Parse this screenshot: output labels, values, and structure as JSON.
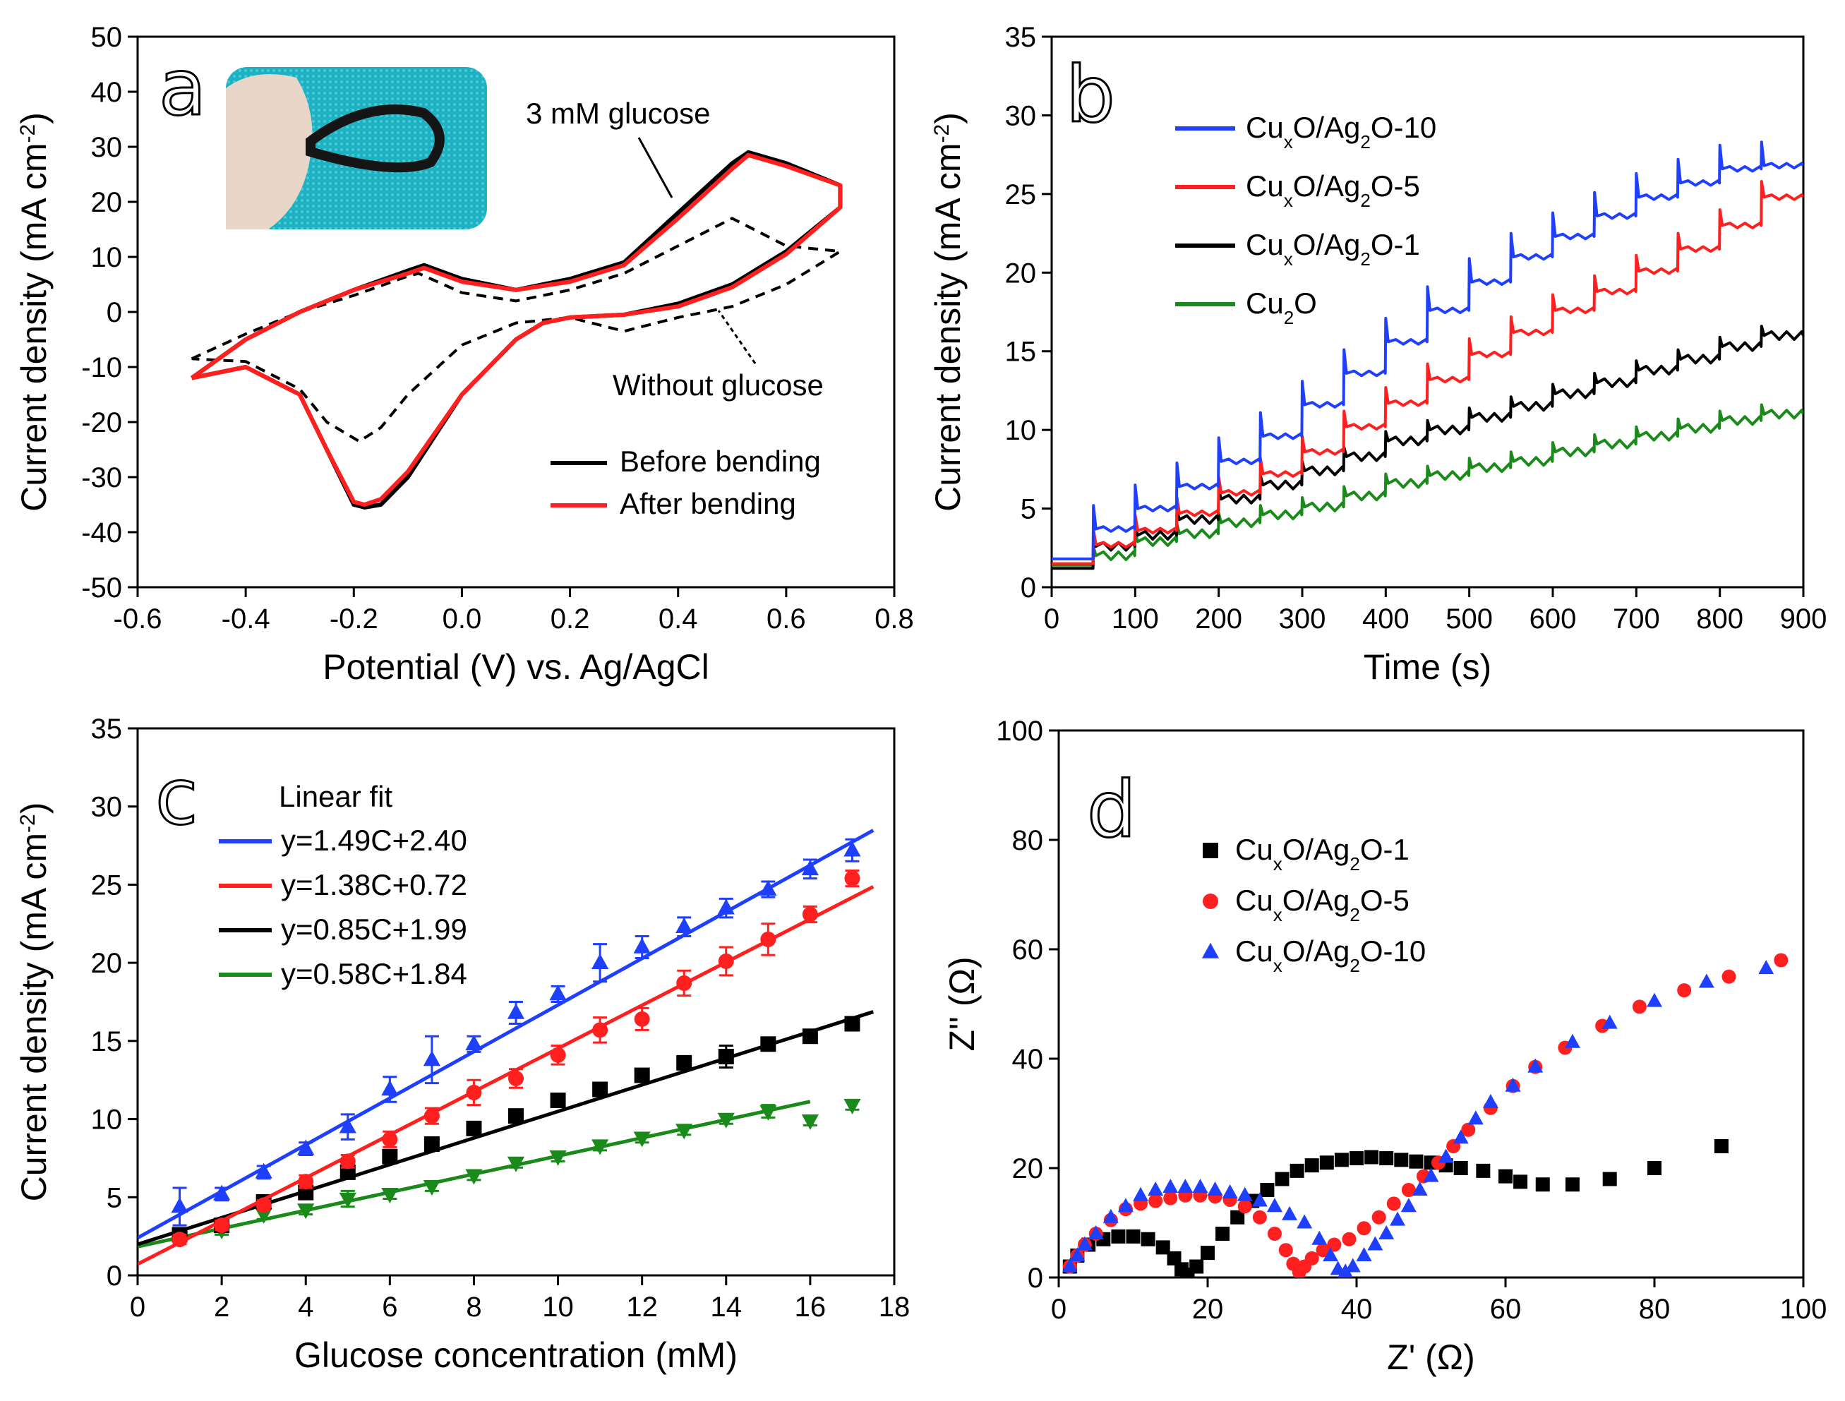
{
  "colors": {
    "blue": "#1f3fff",
    "red": "#ff1f1f",
    "black": "#000000",
    "green": "#1a8a1a"
  },
  "chart_data": [
    {
      "panel": "a",
      "type": "line",
      "letter": "a",
      "xlabel": "Potential (V) vs. Ag/AgCl",
      "ylabel": "Current density (mA cm",
      "ylabel_sup": "-2",
      "ylabel_end": ")",
      "xlim": [
        -0.6,
        0.8
      ],
      "ylim": [
        -50,
        50
      ],
      "xticks": [
        "-0.6",
        "-0.4",
        "-0.2",
        "0.0",
        "0.2",
        "0.4",
        "0.6",
        "0.8"
      ],
      "yticks": [
        "-50",
        "-40",
        "-30",
        "-20",
        "-10",
        "0",
        "10",
        "20",
        "30",
        "40",
        "50"
      ],
      "annotations": [
        "3 mM glucose",
        "Without glucose"
      ],
      "inset": "photo of bent flexible electrode",
      "series": [
        {
          "name": "Before bending",
          "color": "black",
          "style": "solid",
          "x": [
            -0.5,
            -0.4,
            -0.3,
            -0.2,
            -0.1,
            -0.07,
            0.0,
            0.1,
            0.2,
            0.3,
            0.4,
            0.5,
            0.53,
            0.6,
            0.7,
            0.7,
            0.6,
            0.5,
            0.4,
            0.3,
            0.2,
            0.15,
            0.1,
            0.0,
            -0.1,
            -0.15,
            -0.18,
            -0.2,
            -0.25,
            -0.3,
            -0.4,
            -0.5
          ],
          "y": [
            -12,
            -5,
            0,
            4,
            7.5,
            8.5,
            6,
            4,
            6,
            9,
            18,
            27,
            29,
            27,
            23,
            19,
            11,
            5,
            1.5,
            -0.5,
            -1,
            -2,
            -5,
            -15,
            -30,
            -35,
            -35.5,
            -35,
            -25,
            -15,
            -10,
            -12
          ]
        },
        {
          "name": "After bending",
          "color": "red",
          "style": "solid",
          "x": [
            -0.5,
            -0.4,
            -0.3,
            -0.2,
            -0.1,
            -0.07,
            0.0,
            0.1,
            0.2,
            0.3,
            0.4,
            0.5,
            0.53,
            0.6,
            0.7,
            0.7,
            0.6,
            0.5,
            0.4,
            0.3,
            0.2,
            0.15,
            0.1,
            0.0,
            -0.1,
            -0.15,
            -0.18,
            -0.2,
            -0.25,
            -0.3,
            -0.4,
            -0.5
          ],
          "y": [
            -12,
            -5,
            0,
            4,
            7,
            8,
            5.5,
            4,
            5.5,
            8.5,
            17,
            26,
            28.5,
            26.5,
            23,
            19,
            10.5,
            4.5,
            1,
            -0.5,
            -1,
            -2,
            -5,
            -15,
            -29,
            -34,
            -35,
            -34.5,
            -25,
            -15,
            -10,
            -12
          ]
        },
        {
          "name": "Without glucose",
          "color": "black",
          "style": "dashed",
          "x": [
            -0.5,
            -0.4,
            -0.3,
            -0.2,
            -0.1,
            -0.08,
            0.0,
            0.1,
            0.2,
            0.3,
            0.4,
            0.5,
            0.6,
            0.7,
            0.7,
            0.6,
            0.5,
            0.4,
            0.3,
            0.2,
            0.1,
            0.0,
            -0.1,
            -0.15,
            -0.19,
            -0.25,
            -0.3,
            -0.4,
            -0.5
          ],
          "y": [
            -8.5,
            -4,
            0,
            3,
            6.5,
            7,
            3.5,
            2,
            4,
            7,
            12,
            17,
            12,
            11,
            11,
            5,
            1,
            -1,
            -3.5,
            -1,
            -2,
            -6,
            -15,
            -21,
            -23.5,
            -20,
            -14,
            -9,
            -8.5
          ]
        }
      ],
      "legend": [
        "Before bending",
        "After bending"
      ]
    },
    {
      "panel": "b",
      "type": "line",
      "letter": "b",
      "xlabel": "Time (s)",
      "ylabel": "Current density (mA cm",
      "ylabel_sup": "-2",
      "ylabel_end": ")",
      "xlim": [
        0,
        900
      ],
      "ylim": [
        0,
        35
      ],
      "xticks": [
        "0",
        "100",
        "200",
        "300",
        "400",
        "500",
        "600",
        "700",
        "800",
        "900"
      ],
      "yticks": [
        "0",
        "5",
        "10",
        "15",
        "20",
        "25",
        "30",
        "35"
      ],
      "series": [
        {
          "name": "CuxO/Ag2O-10",
          "color": "blue",
          "start": 1.8,
          "steps": [
            3.7,
            5.0,
            6.4,
            8.0,
            9.6,
            11.6,
            13.6,
            15.6,
            17.6,
            19.4,
            21.0,
            22.3,
            23.6,
            24.8,
            25.7,
            26.6,
            26.8
          ]
        },
        {
          "name": "CuxO/Ag2O-5",
          "color": "red",
          "start": 1.5,
          "steps": [
            2.7,
            3.6,
            4.7,
            6.0,
            7.2,
            8.6,
            10.2,
            11.7,
            13.2,
            14.8,
            16.2,
            17.6,
            18.8,
            20.1,
            21.5,
            23.0,
            24.8
          ]
        },
        {
          "name": "CuxO/Ag2O-1",
          "color": "black",
          "start": 1.2,
          "steps": [
            2.6,
            3.3,
            4.3,
            5.6,
            6.5,
            7.4,
            8.3,
            9.3,
            10.0,
            10.8,
            11.5,
            12.3,
            13.0,
            13.8,
            14.5,
            15.3,
            16.0
          ]
        },
        {
          "name": "Cu2O",
          "color": "green",
          "start": 1.4,
          "steps": [
            2.0,
            2.9,
            3.4,
            4.1,
            4.6,
            5.1,
            5.8,
            6.6,
            7.1,
            7.6,
            8.0,
            8.6,
            9.1,
            9.6,
            10.1,
            10.6,
            11.0
          ]
        }
      ],
      "legend_labels": [
        {
          "a": "Cu",
          "s1": "x",
          "b": "O/Ag",
          "s2": "2",
          "c": "O-10"
        },
        {
          "a": "Cu",
          "s1": "x",
          "b": "O/Ag",
          "s2": "2",
          "c": "O-5"
        },
        {
          "a": "Cu",
          "s1": "x",
          "b": "O/Ag",
          "s2": "2",
          "c": "O-1"
        },
        {
          "a": "Cu",
          "s1": "2",
          "b": "O",
          "s2": "",
          "c": ""
        }
      ]
    },
    {
      "panel": "c",
      "type": "scatter",
      "letter": "c",
      "xlabel": "Glucose concentration (mM)",
      "ylabel": "Current density (mA cm",
      "ylabel_sup": "-2",
      "ylabel_end": ")",
      "xlim": [
        0,
        18
      ],
      "ylim": [
        0,
        35
      ],
      "xticks": [
        "0",
        "2",
        "4",
        "6",
        "8",
        "10",
        "12",
        "14",
        "16",
        "18"
      ],
      "yticks": [
        "0",
        "5",
        "10",
        "15",
        "20",
        "25",
        "30",
        "35"
      ],
      "legend_title": "Linear fit",
      "series": [
        {
          "name": "y=1.49C+2.40",
          "color": "blue",
          "marker": "triangle-up",
          "slope": 1.49,
          "intercept": 2.4,
          "x": [
            1,
            2,
            3,
            4,
            5,
            6,
            7,
            8,
            9,
            10,
            11,
            12,
            13,
            14,
            15,
            16,
            17
          ],
          "y": [
            4.4,
            5.2,
            6.6,
            8.1,
            9.5,
            11.9,
            13.8,
            14.8,
            16.8,
            18.0,
            20.0,
            21.0,
            22.3,
            23.5,
            24.7,
            26.0,
            27.2
          ],
          "err": [
            1.2,
            0.4,
            0.4,
            0.4,
            0.8,
            0.8,
            1.5,
            0.5,
            0.7,
            0.5,
            1.2,
            0.7,
            0.6,
            0.6,
            0.5,
            0.6,
            0.7
          ]
        },
        {
          "name": "y=1.38C+0.72",
          "color": "red",
          "marker": "circle",
          "slope": 1.38,
          "intercept": 0.72,
          "x": [
            1,
            2,
            3,
            4,
            5,
            6,
            7,
            8,
            9,
            10,
            11,
            12,
            13,
            14,
            15,
            16,
            17
          ],
          "y": [
            2.3,
            3.2,
            4.5,
            6.0,
            7.3,
            8.7,
            10.2,
            11.7,
            12.6,
            14.1,
            15.7,
            16.4,
            18.7,
            20.1,
            21.5,
            23.1,
            25.4
          ],
          "err": [
            0.3,
            0.3,
            0.3,
            0.4,
            0.4,
            0.5,
            0.5,
            0.8,
            0.6,
            0.6,
            0.8,
            0.7,
            0.8,
            0.9,
            1.0,
            0.5,
            0.5
          ]
        },
        {
          "name": "y=0.85C+1.99",
          "color": "black",
          "marker": "square",
          "slope": 0.85,
          "intercept": 1.99,
          "x": [
            1,
            2,
            3,
            4,
            5,
            6,
            7,
            8,
            9,
            10,
            11,
            12,
            13,
            14,
            15,
            16,
            17
          ],
          "y": [
            2.6,
            3.2,
            4.7,
            5.3,
            6.6,
            7.6,
            8.4,
            9.4,
            10.2,
            11.2,
            11.9,
            12.8,
            13.6,
            14.0,
            14.8,
            15.3,
            16.1
          ],
          "err": [
            0.2,
            0.2,
            0.2,
            0.2,
            0.3,
            0.3,
            0.3,
            0.3,
            0.3,
            0.3,
            0.3,
            0.3,
            0.3,
            0.7,
            0.3,
            0.3,
            0.3
          ]
        },
        {
          "name": "y=0.58C+1.84",
          "color": "green",
          "marker": "triangle-down",
          "slope": 0.58,
          "intercept": 1.84,
          "x": [
            1,
            2,
            3,
            4,
            5,
            6,
            7,
            8,
            9,
            10,
            11,
            12,
            13,
            14,
            15,
            16,
            17
          ],
          "y": [
            2.4,
            2.9,
            3.9,
            4.2,
            4.9,
            5.2,
            5.7,
            6.4,
            7.2,
            7.6,
            8.3,
            8.8,
            9.3,
            10.0,
            10.5,
            9.9,
            10.9
          ],
          "err": [
            0.2,
            0.3,
            0.3,
            0.3,
            0.5,
            0.3,
            0.3,
            0.3,
            0.3,
            0.3,
            0.3,
            0.3,
            0.3,
            0.3,
            0.4,
            0.3,
            0.3
          ]
        }
      ]
    },
    {
      "panel": "d",
      "type": "scatter",
      "letter": "d",
      "xlabel": "Z' (Ω)",
      "ylabel": "Z'' (Ω)",
      "xlim": [
        0,
        100
      ],
      "ylim": [
        0,
        100
      ],
      "xticks": [
        "0",
        "20",
        "40",
        "60",
        "80",
        "100"
      ],
      "yticks": [
        "0",
        "20",
        "40",
        "60",
        "80",
        "100"
      ],
      "series": [
        {
          "name": "CuxO/Ag2O-1",
          "color": "black",
          "marker": "square",
          "x": [
            1.5,
            2.5,
            4,
            6,
            8,
            10,
            12,
            14,
            15.5,
            16.5,
            17.3,
            18.5,
            20,
            22,
            24,
            26,
            28,
            30,
            32,
            34,
            36,
            38,
            40,
            42,
            44,
            46,
            48,
            50,
            52,
            54,
            57,
            60,
            62,
            65,
            69,
            74,
            80,
            89
          ],
          "y": [
            2,
            4,
            6,
            7,
            7.5,
            7.5,
            7,
            5.5,
            3.5,
            1.5,
            0.5,
            2,
            4.5,
            8,
            11,
            14,
            16,
            18,
            19.5,
            20.5,
            21,
            21.5,
            21.8,
            22,
            21.8,
            21.5,
            21.2,
            21,
            20.5,
            20,
            19.5,
            18.5,
            17.5,
            17,
            17,
            18,
            20,
            24
          ]
        },
        {
          "name": "CuxO/Ag2O-5",
          "color": "red",
          "marker": "circle",
          "x": [
            1.5,
            2.5,
            3.5,
            5,
            7,
            9,
            11,
            13,
            15,
            17,
            19,
            21,
            23,
            25,
            27,
            29,
            30.5,
            31.5,
            32.3,
            33,
            34,
            35.5,
            37,
            39,
            41,
            43,
            45,
            47,
            49,
            51,
            53,
            55,
            58,
            61,
            64,
            68,
            73,
            78,
            84,
            90,
            97
          ],
          "y": [
            2,
            4,
            6,
            8,
            10.5,
            12.5,
            13.5,
            14,
            14.5,
            15,
            15,
            14.8,
            14.2,
            13,
            11,
            8,
            5,
            2.5,
            1,
            2,
            3.5,
            5,
            6,
            7,
            9,
            11,
            13.5,
            16,
            18.5,
            21,
            24,
            27,
            31,
            35,
            38.5,
            42,
            46,
            49.5,
            52.5,
            55,
            58
          ]
        },
        {
          "name": "CuxO/Ag2O-10",
          "color": "blue",
          "marker": "triangle-up",
          "x": [
            1.5,
            2.5,
            3.5,
            5,
            7,
            9,
            11,
            13,
            15,
            17,
            19,
            21,
            23,
            25,
            27,
            29,
            31,
            33,
            35,
            36.5,
            37.5,
            38.5,
            39.5,
            41,
            42.5,
            44,
            45.5,
            47,
            48.5,
            50,
            52,
            54,
            56,
            58,
            61,
            64,
            69,
            74,
            80,
            87,
            95
          ],
          "y": [
            2,
            4,
            6,
            8,
            11,
            13,
            15,
            16,
            16.5,
            16.5,
            16.5,
            16,
            15.5,
            15,
            14,
            13,
            11.5,
            10,
            7,
            4,
            1.5,
            1,
            2,
            4,
            6,
            8,
            10.5,
            13,
            16,
            18.5,
            22,
            25.5,
            29,
            32,
            35,
            38.5,
            43,
            46.5,
            50.5,
            54,
            56.5
          ]
        }
      ],
      "legend_labels": [
        {
          "a": "Cu",
          "s1": "x",
          "b": "O/Ag",
          "s2": "2",
          "c": "O-1"
        },
        {
          "a": "Cu",
          "s1": "x",
          "b": "O/Ag",
          "s2": "2",
          "c": "O-5"
        },
        {
          "a": "Cu",
          "s1": "x",
          "b": "O/Ag",
          "s2": "2",
          "c": "O-10"
        }
      ]
    }
  ]
}
